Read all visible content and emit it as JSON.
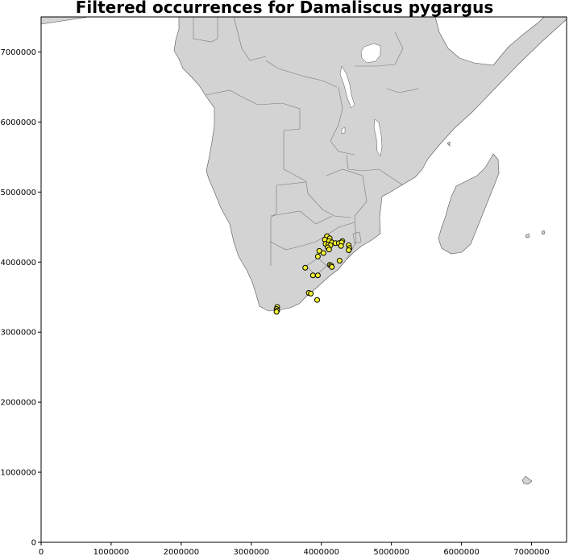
{
  "map": {
    "title": "Filtered occurrences for Damaliscus pygargus",
    "x_ticks": [
      "0",
      "1000000",
      "2000000",
      "3000000",
      "4000000",
      "5000000",
      "6000000",
      "7000000"
    ],
    "y_ticks": [
      "0",
      "1000000",
      "2000000",
      "3000000",
      "4000000",
      "5000000",
      "6000000",
      "7000000"
    ],
    "x_tick_values": [
      0,
      1000000,
      2000000,
      3000000,
      4000000,
      5000000,
      6000000,
      7000000
    ],
    "y_tick_values": [
      0,
      1000000,
      2000000,
      3000000,
      4000000,
      5000000,
      6000000,
      7000000
    ],
    "x_range": [
      0,
      7500000
    ],
    "y_range": [
      0,
      7500000
    ],
    "colors": {
      "land": "#d3d3d3",
      "marker_fill": "#f5f232",
      "marker_edge": "#000000"
    }
  },
  "chart_data": {
    "type": "scatter",
    "title": "Filtered occurrences for Damaliscus pygargus",
    "xlabel": "",
    "ylabel": "",
    "xlim": [
      0,
      7500000
    ],
    "ylim": [
      0,
      7500000
    ],
    "series": [
      {
        "name": "occurrences",
        "points": [
          [
            4080000,
            4370000
          ],
          [
            4120000,
            4340000
          ],
          [
            4050000,
            4320000
          ],
          [
            4110000,
            4300000
          ],
          [
            4150000,
            4280000
          ],
          [
            4200000,
            4270000
          ],
          [
            4250000,
            4270000
          ],
          [
            4060000,
            4260000
          ],
          [
            4100000,
            4250000
          ],
          [
            4130000,
            4240000
          ],
          [
            4090000,
            4210000
          ],
          [
            4110000,
            4180000
          ],
          [
            4300000,
            4300000
          ],
          [
            4290000,
            4280000
          ],
          [
            4280000,
            4230000
          ],
          [
            4390000,
            4240000
          ],
          [
            4400000,
            4200000
          ],
          [
            4390000,
            4170000
          ],
          [
            3970000,
            4160000
          ],
          [
            4030000,
            4130000
          ],
          [
            3950000,
            4080000
          ],
          [
            4260000,
            4020000
          ],
          [
            3770000,
            3920000
          ],
          [
            4120000,
            3960000
          ],
          [
            4140000,
            3950000
          ],
          [
            4150000,
            3930000
          ],
          [
            3880000,
            3810000
          ],
          [
            3950000,
            3810000
          ],
          [
            3820000,
            3560000
          ],
          [
            3850000,
            3550000
          ],
          [
            3940000,
            3460000
          ],
          [
            3370000,
            3360000
          ],
          [
            3360000,
            3330000
          ],
          [
            3370000,
            3310000
          ],
          [
            3360000,
            3290000
          ]
        ]
      }
    ]
  }
}
